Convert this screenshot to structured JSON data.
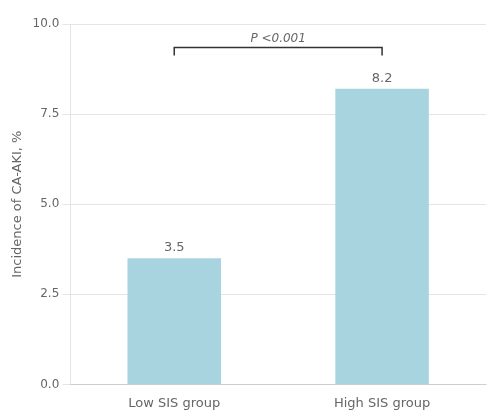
{
  "chart_data": {
    "type": "bar",
    "categories": [
      "Low SIS group",
      "High SIS group"
    ],
    "values": [
      3.5,
      8.2
    ],
    "color": "#a8d4e0",
    "ylabel": "Incidence of CA-AKI, %",
    "ylim": [
      0,
      10.0
    ],
    "yticks": [
      {
        "value": 0,
        "label": "0.0"
      },
      2.5,
      {
        "value": 5,
        "label": "5.0"
      },
      7.5,
      {
        "value": 10,
        "label": "10.0"
      }
    ],
    "grid": true,
    "data_labels": true,
    "annotations": [
      {
        "text": "P <0.001",
        "y": 9.35,
        "x": [
          "Low SIS group",
          "High SIS group"
        ],
        "color": "#333333"
      }
    ]
  }
}
